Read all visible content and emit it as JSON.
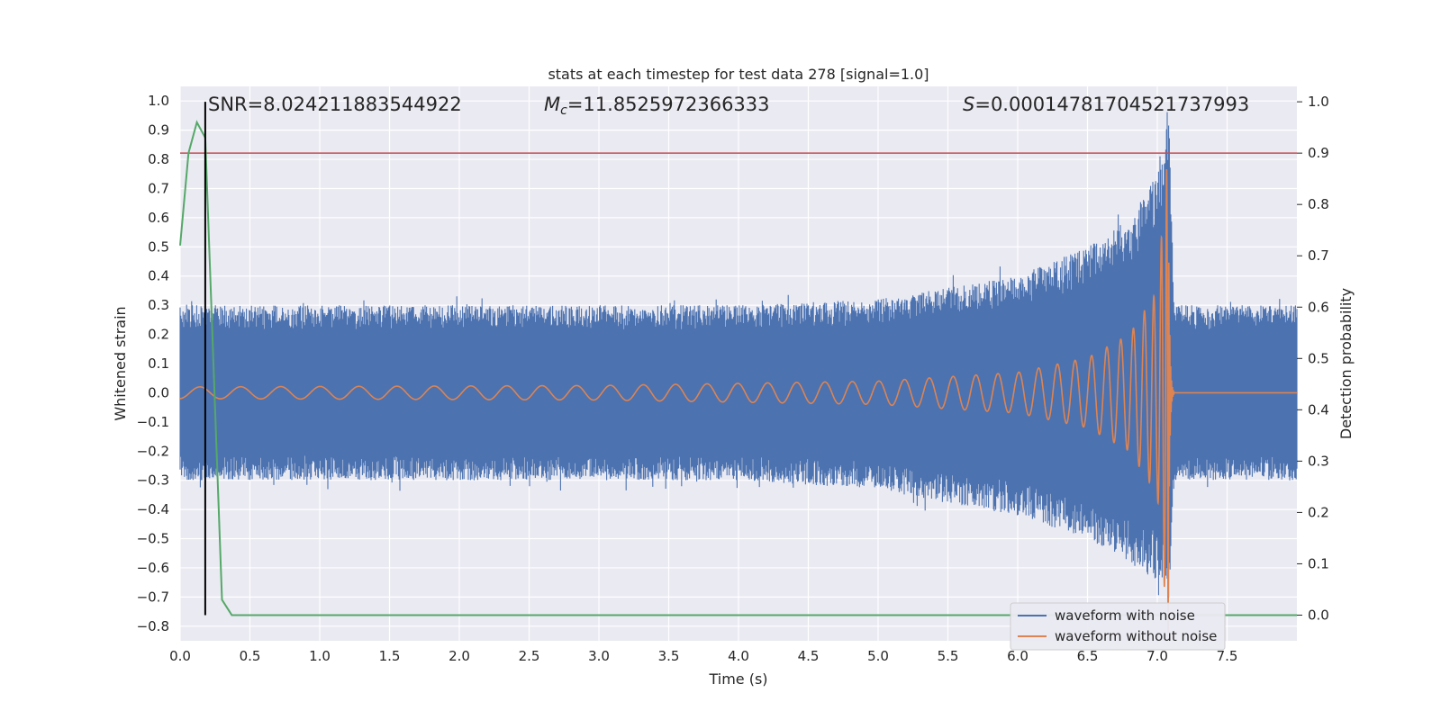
{
  "chart_data": {
    "type": "line",
    "title": "stats at each timestep for test data 278 [signal=1.0]",
    "xlabel": "Time (s)",
    "ylabel_left": "Whitened strain",
    "ylabel_right": "Detection probability",
    "xlim": [
      0.0,
      8.0
    ],
    "ylim_left": [
      -0.85,
      1.05
    ],
    "ylim_right": [
      -0.05,
      1.03
    ],
    "x_ticks": [
      0.0,
      0.5,
      1.0,
      1.5,
      2.0,
      2.5,
      3.0,
      3.5,
      4.0,
      4.5,
      5.0,
      5.5,
      6.0,
      6.5,
      7.0,
      7.5
    ],
    "x_tick_labels": [
      "0.0",
      "0.5",
      "1.0",
      "1.5",
      "2.0",
      "2.5",
      "3.0",
      "3.5",
      "4.0",
      "4.5",
      "5.0",
      "5.5",
      "6.0",
      "6.5",
      "7.0",
      "7.5"
    ],
    "y_left_ticks": [
      -0.8,
      -0.7,
      -0.6,
      -0.5,
      -0.4,
      -0.3,
      -0.2,
      -0.1,
      0.0,
      0.1,
      0.2,
      0.3,
      0.4,
      0.5,
      0.6,
      0.7,
      0.8,
      0.9,
      1.0
    ],
    "y_left_tick_labels": [
      "−0.8",
      "−0.7",
      "−0.6",
      "−0.5",
      "−0.4",
      "−0.3",
      "−0.2",
      "−0.1",
      "0.0",
      "0.1",
      "0.2",
      "0.3",
      "0.4",
      "0.5",
      "0.6",
      "0.7",
      "0.8",
      "0.9",
      "1.0"
    ],
    "y_right_ticks": [
      0.0,
      0.1,
      0.2,
      0.3,
      0.4,
      0.5,
      0.6,
      0.7,
      0.8,
      0.9,
      1.0
    ],
    "y_right_tick_labels": [
      "0.0",
      "0.1",
      "0.2",
      "0.3",
      "0.4",
      "0.5",
      "0.6",
      "0.7",
      "0.8",
      "0.9",
      "1.0"
    ],
    "grid": true,
    "annotations": {
      "snr": "SNR=8.024211883544922",
      "mc_sym": "M",
      "mc_sub": "c",
      "mc_val": "=11.8525972366333",
      "s_sym": "S",
      "s_val": "=0.00014781704521737993"
    },
    "legend": {
      "placement": "lower-right",
      "entries": [
        "waveform with noise",
        "waveform without noise"
      ]
    },
    "series": [
      {
        "name": "waveform with noise",
        "axis": "left",
        "color": "#4c72b0",
        "description_envelope": {
          "t": [
            0.0,
            1.0,
            2.0,
            3.0,
            4.0,
            5.0,
            5.5,
            6.0,
            6.5,
            6.8,
            7.0,
            7.08,
            7.12,
            8.0
          ],
          "upper": [
            0.3,
            0.3,
            0.3,
            0.3,
            0.3,
            0.32,
            0.36,
            0.4,
            0.5,
            0.6,
            0.75,
            1.0,
            0.3,
            0.3
          ],
          "lower": [
            -0.3,
            -0.3,
            -0.3,
            -0.3,
            -0.3,
            -0.33,
            -0.38,
            -0.42,
            -0.5,
            -0.58,
            -0.65,
            -0.75,
            -0.3,
            -0.3
          ]
        }
      },
      {
        "name": "waveform without noise",
        "axis": "left",
        "color": "#dd8452",
        "chirp": {
          "t_merger": 7.08,
          "amplitude_at": {
            "t": [
              0.0,
              3.0,
              5.0,
              6.0,
              6.5,
              6.8,
              7.0,
              7.08
            ],
            "amp": [
              0.02,
              0.025,
              0.04,
              0.07,
              0.12,
              0.2,
              0.35,
              0.85
            ]
          },
          "ringdown_end": 7.12
        }
      },
      {
        "name": "detection probability",
        "axis": "right",
        "color": "#55a868",
        "x": [
          0.0,
          0.06,
          0.12,
          0.18,
          0.3,
          0.37,
          8.0
        ],
        "y": [
          0.72,
          0.9,
          0.96,
          0.93,
          0.03,
          0.0,
          0.0
        ]
      }
    ],
    "threshold_line": {
      "axis": "right",
      "value": 0.9,
      "color": "#c44e52"
    },
    "marker_vline": {
      "x": 0.18,
      "y_from": 0.0,
      "y_to": 1.0,
      "color": "#000000"
    }
  }
}
